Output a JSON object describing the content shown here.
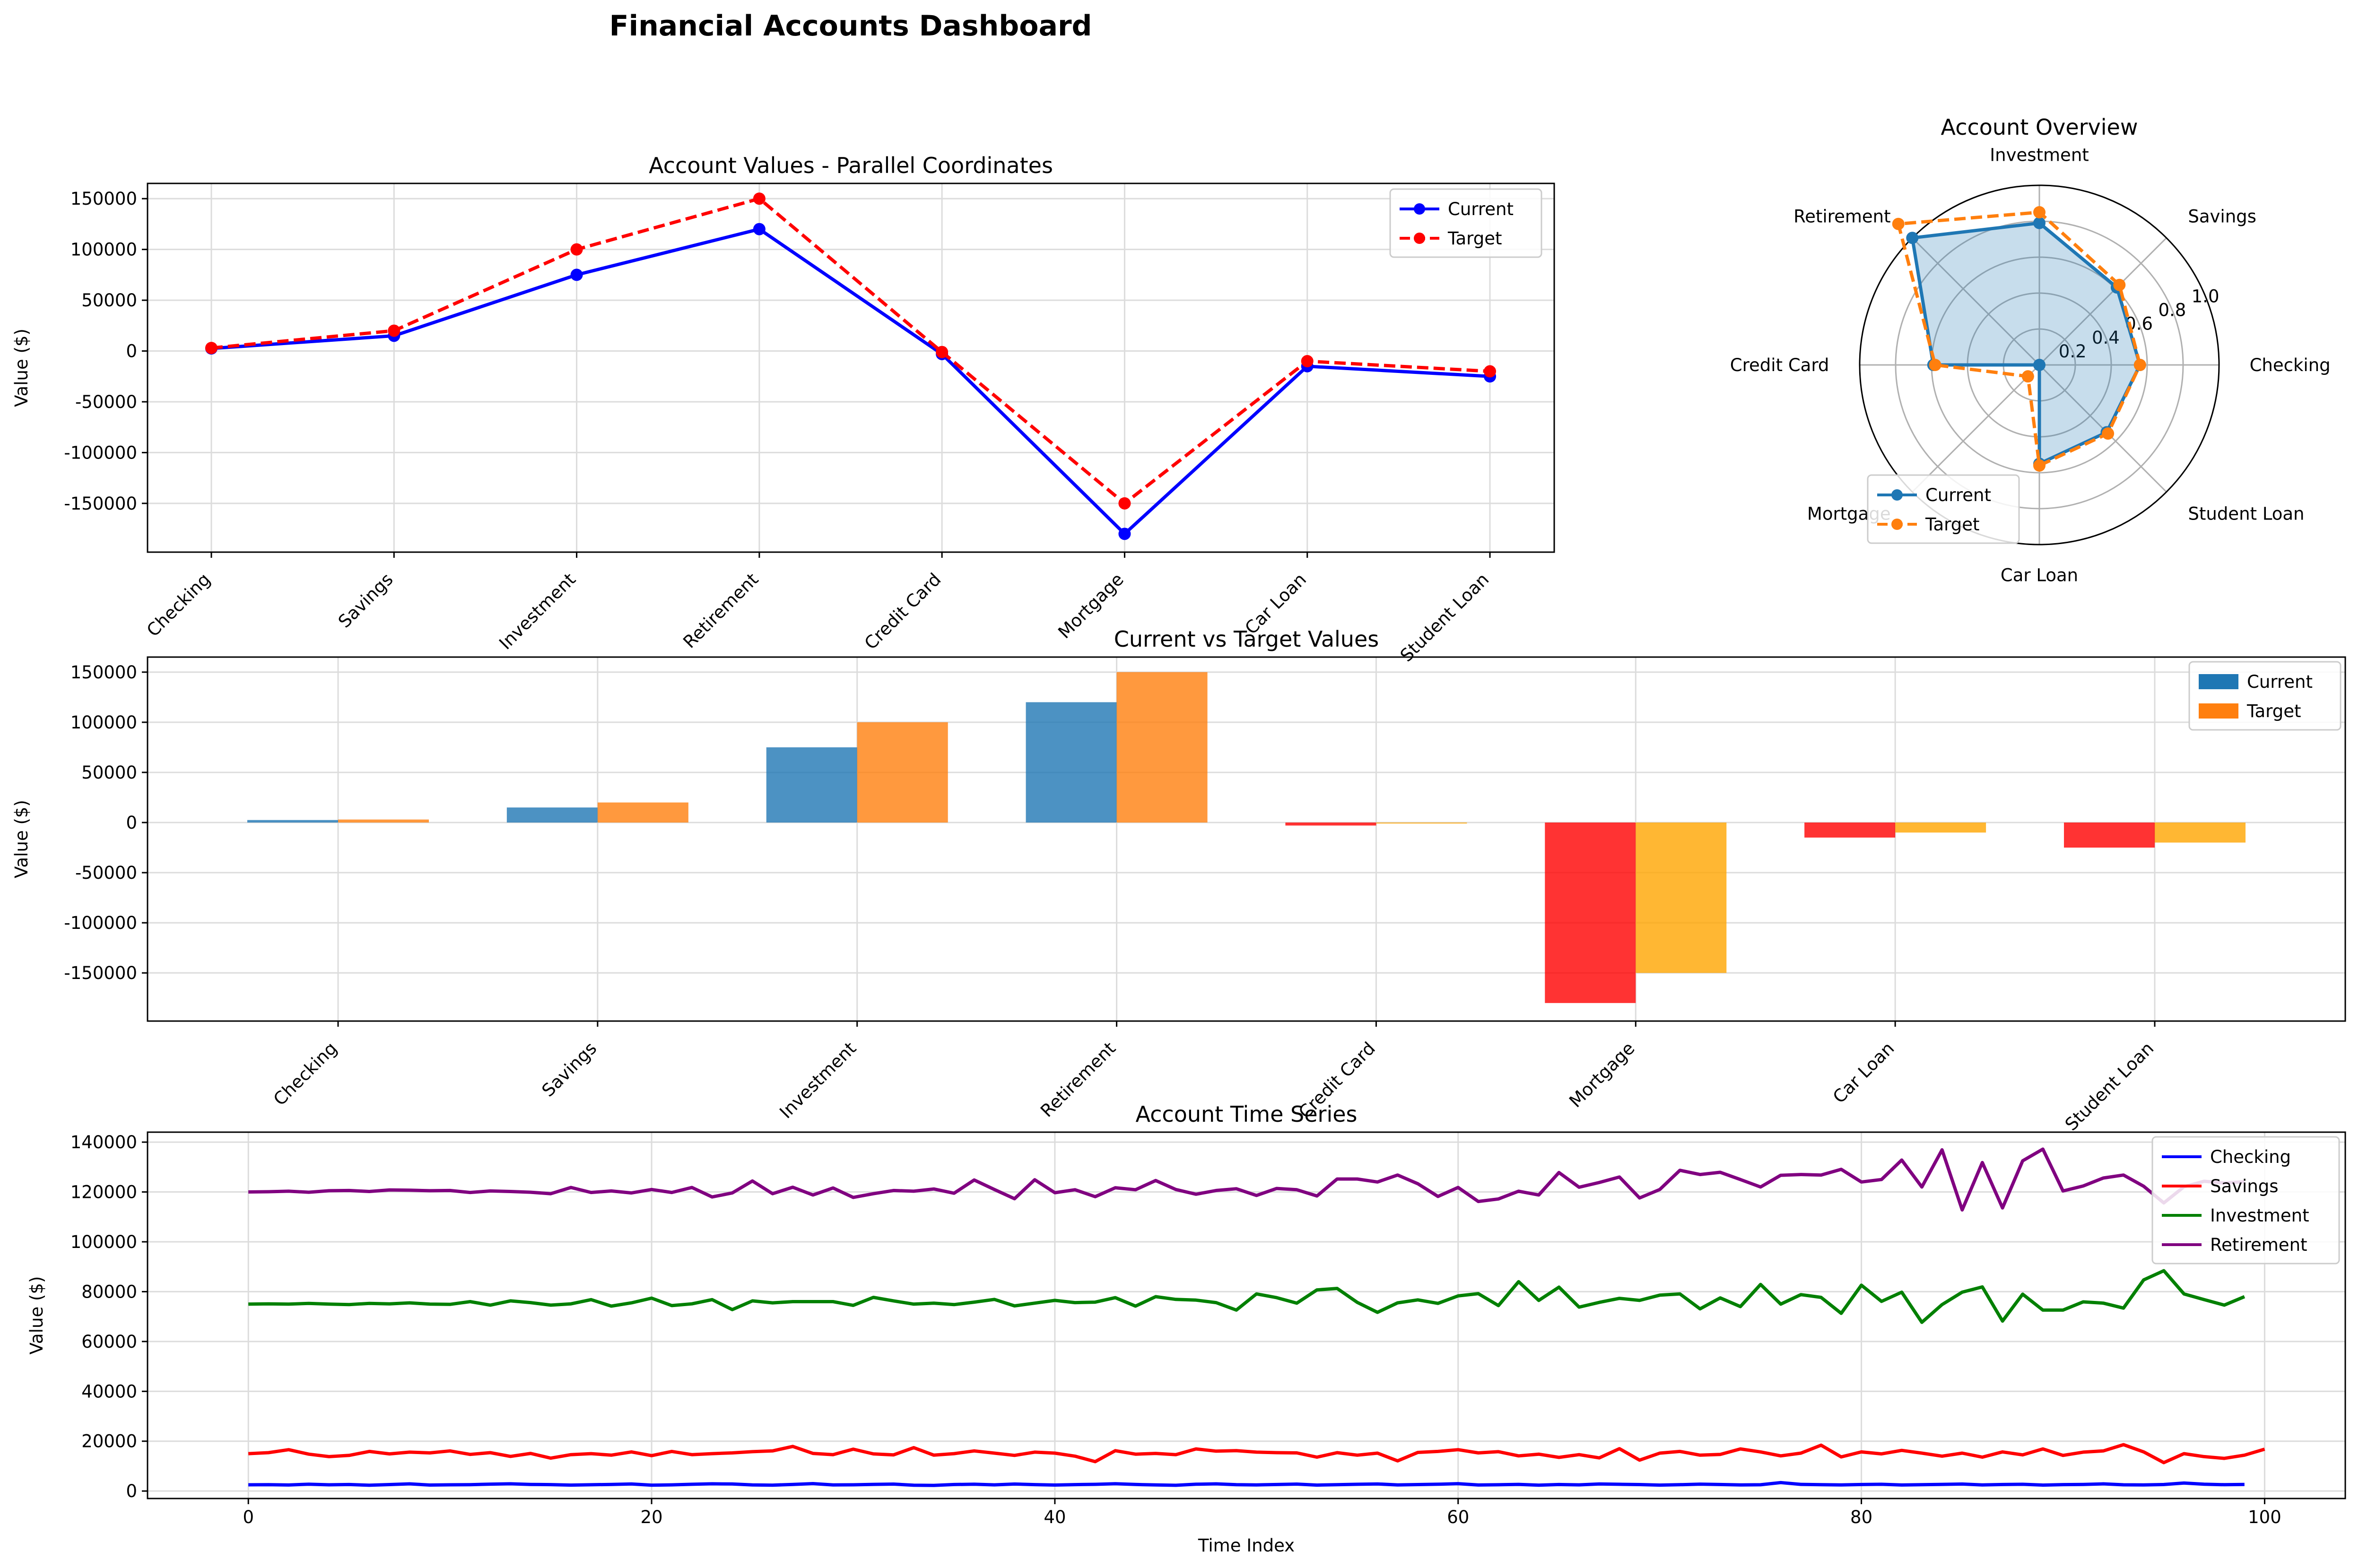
{
  "title": "Financial Accounts Dashboard",
  "chart_data": [
    {
      "type": "line",
      "title": "Account Values - Parallel Coordinates",
      "xlabel": "",
      "ylabel": "Value ($)",
      "categories": [
        "Checking",
        "Savings",
        "Investment",
        "Retirement",
        "Credit Card",
        "Mortgage",
        "Car Loan",
        "Student Loan"
      ],
      "series": [
        {
          "name": "Current",
          "values": [
            2500,
            15000,
            75000,
            120000,
            -3000,
            -180000,
            -15000,
            -25000
          ],
          "color": "#0000ff",
          "style": "solid"
        },
        {
          "name": "Target",
          "values": [
            3000,
            20000,
            100000,
            150000,
            -1000,
            -150000,
            -10000,
            -20000
          ],
          "color": "#ff0000",
          "style": "dashed"
        }
      ],
      "ylim": [
        -198000,
        165000
      ],
      "yticks": [
        -150000,
        -100000,
        -50000,
        0,
        50000,
        100000,
        150000
      ],
      "grid": true,
      "legend": "top-right"
    },
    {
      "type": "radar",
      "title": "Account Overview",
      "categories": [
        "Checking",
        "Savings",
        "Investment",
        "Retirement",
        "Credit Card",
        "Mortgage",
        "Car Loan",
        "Student Loan"
      ],
      "series": [
        {
          "name": "Current",
          "values": [
            0.56,
            0.61,
            0.79,
            1.0,
            0.59,
            0.0,
            0.55,
            0.53
          ],
          "color": "#1f77b4",
          "style": "solid",
          "fill": true
        },
        {
          "name": "Target",
          "values": [
            0.56,
            0.63,
            0.85,
            1.11,
            0.58,
            0.09,
            0.56,
            0.54
          ],
          "color": "#ff7f0e",
          "style": "dashed"
        }
      ],
      "rticks": [
        "0.2",
        "0.4",
        "0.6",
        "0.8",
        "1.0"
      ],
      "rmax": 1.0,
      "legend": "bottom-left"
    },
    {
      "type": "bar",
      "title": "Current vs Target Values",
      "ylabel": "Value ($)",
      "categories": [
        "Checking",
        "Savings",
        "Investment",
        "Retirement",
        "Credit Card",
        "Mortgage",
        "Car Loan",
        "Student Loan"
      ],
      "series": [
        {
          "name": "Current",
          "values": [
            2500,
            15000,
            75000,
            120000,
            -3000,
            -180000,
            -15000,
            -25000
          ],
          "color": "#1f77b4",
          "negative_color": "#ff0000"
        },
        {
          "name": "Target",
          "values": [
            3000,
            20000,
            100000,
            150000,
            -1000,
            -150000,
            -10000,
            -20000
          ],
          "color": "#ff7f0e",
          "negative_color": "#ffa500"
        }
      ],
      "ylim": [
        -198000,
        165000
      ],
      "yticks": [
        -150000,
        -100000,
        -50000,
        0,
        50000,
        100000,
        150000
      ],
      "grid": true,
      "legend": "top-right"
    },
    {
      "type": "line",
      "title": "Account Time Series",
      "xlabel": "Time Index",
      "ylabel": "Value ($)",
      "x_start": 0,
      "xlim": [
        -5,
        104
      ],
      "xticks": [
        0,
        20,
        40,
        60,
        80,
        100
      ],
      "ylim": [
        -3000,
        144000
      ],
      "yticks": [
        0,
        20000,
        40000,
        60000,
        80000,
        100000,
        120000,
        140000
      ],
      "grid": true,
      "legend": "top-right",
      "series": [
        {
          "name": "Checking",
          "color": "#0000ff",
          "values": [
            2500,
            2560,
            2430,
            2740,
            2500,
            2620,
            2330,
            2600,
            2880,
            2410,
            2510,
            2560,
            2770,
            2900,
            2650,
            2580,
            2390,
            2520,
            2660,
            2840,
            2350,
            2480,
            2700,
            2900,
            2820,
            2460,
            2370,
            2650,
            2980,
            2440,
            2510,
            2680,
            2790,
            2330,
            2260,
            2610,
            2720,
            2490,
            2810,
            2580,
            2400,
            2570,
            2690,
            2910,
            2640,
            2450,
            2310,
            2720,
            2880,
            2560,
            2470,
            2620,
            2780,
            2390,
            2560,
            2710,
            2840,
            2460,
            2600,
            2730,
            2950,
            2420,
            2520,
            2680,
            2340,
            2610,
            2480,
            2820,
            2700,
            2590,
            2380,
            2540,
            2760,
            2610,
            2440,
            2520,
            3400,
            2680,
            2550,
            2470,
            2610,
            2700,
            2420,
            2530,
            2680,
            2810,
            2450,
            2620,
            2710,
            2390,
            2570,
            2660,
            2880,
            2500,
            2440,
            2610,
            3200,
            2750,
            2540,
            2650
          ]
        },
        {
          "name": "Savings",
          "color": "#ff0000",
          "values": [
            15000,
            15400,
            16600,
            14800,
            13800,
            14300,
            15900,
            14900,
            15600,
            15300,
            16100,
            14700,
            15400,
            13900,
            15100,
            13200,
            14600,
            15000,
            14400,
            15700,
            14200,
            15900,
            14600,
            15000,
            15300,
            15800,
            16100,
            17900,
            15100,
            14600,
            16800,
            14900,
            14500,
            17400,
            14400,
            15000,
            16100,
            15200,
            14300,
            15600,
            15200,
            14000,
            11800,
            16200,
            14800,
            15100,
            14600,
            16900,
            16000,
            16200,
            15600,
            15400,
            15300,
            13600,
            15400,
            14400,
            15200,
            12100,
            15500,
            15900,
            16600,
            15300,
            15800,
            14100,
            14800,
            13500,
            14600,
            13300,
            17000,
            12400,
            15200,
            15900,
            14400,
            14700,
            16900,
            15700,
            14100,
            15200,
            18400,
            13700,
            15700,
            14900,
            16300,
            15200,
            14000,
            15200,
            13600,
            15700,
            14500,
            16900,
            14300,
            15600,
            16100,
            18600,
            15700,
            11400,
            15000,
            13800,
            13100,
            14400,
            16800
          ]
        },
        {
          "name": "Investment",
          "color": "#008000",
          "values": [
            75000,
            75100,
            75000,
            75300,
            75000,
            74800,
            75300,
            75100,
            75500,
            75000,
            74900,
            76000,
            74600,
            76300,
            75600,
            74600,
            75100,
            76800,
            74200,
            75500,
            77400,
            74400,
            75100,
            76800,
            72800,
            76300,
            75500,
            76000,
            76000,
            76000,
            74500,
            77700,
            76300,
            75000,
            75400,
            74800,
            75800,
            76900,
            74300,
            75400,
            76500,
            75600,
            75800,
            77600,
            74200,
            78000,
            76900,
            76600,
            75600,
            72600,
            79100,
            77600,
            75400,
            80700,
            81300,
            75700,
            71700,
            75500,
            76700,
            75300,
            78300,
            79200,
            74400,
            84000,
            76500,
            81800,
            73800,
            75700,
            77300,
            76500,
            78600,
            79100,
            73100,
            77500,
            74000,
            82900,
            75000,
            78800,
            77700,
            71300,
            82600,
            76100,
            79800,
            67700,
            74800,
            79800,
            81900,
            68200,
            79000,
            72600,
            72600,
            75900,
            75400,
            73400,
            84700,
            88400,
            79100,
            76800,
            74600,
            78000
          ]
        },
        {
          "name": "Retirement",
          "color": "#800080",
          "values": [
            120000,
            120100,
            120300,
            119900,
            120500,
            120600,
            120200,
            120800,
            120700,
            120500,
            120600,
            119800,
            120400,
            120200,
            119900,
            119300,
            121800,
            119800,
            120400,
            119600,
            121000,
            119800,
            121800,
            118000,
            119600,
            124400,
            119300,
            121900,
            118800,
            121600,
            117800,
            119300,
            120600,
            120300,
            121200,
            119500,
            124800,
            121000,
            117300,
            124900,
            119700,
            120900,
            118100,
            121700,
            120900,
            124600,
            121000,
            119100,
            120600,
            121300,
            118600,
            121400,
            120900,
            118400,
            125200,
            125200,
            124000,
            126800,
            123300,
            118200,
            121800,
            116200,
            117200,
            120300,
            118800,
            127800,
            121900,
            123800,
            126000,
            117600,
            121000,
            128700,
            127000,
            127900,
            125000,
            122000,
            126700,
            127000,
            126800,
            129100,
            124000,
            125000,
            132800,
            122000,
            136900,
            112800,
            131800,
            113600,
            132500,
            137200,
            120400,
            122400,
            125600,
            126800,
            122300,
            115600,
            122100,
            124300,
            123600,
            124100
          ]
        }
      ]
    }
  ]
}
